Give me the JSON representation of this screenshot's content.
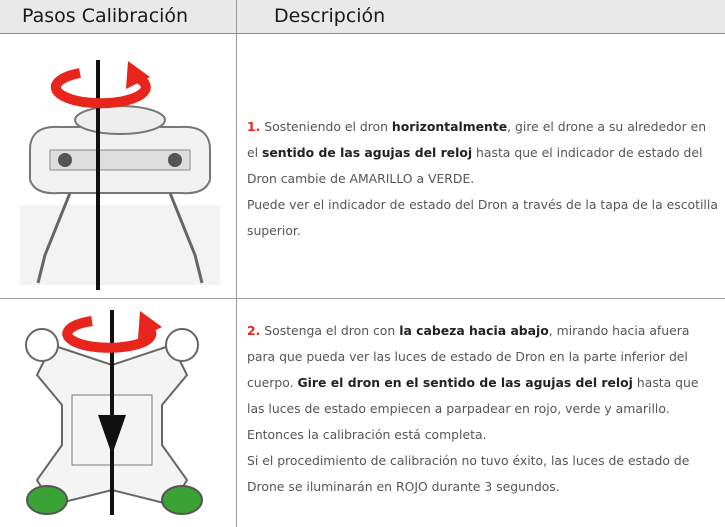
{
  "table": {
    "headers": [
      "Pasos Calibración",
      "Descripción"
    ],
    "rows": [
      {
        "paragraphs": [
          [
            "1.",
            "Sosteniendo el dron",
            "horizontalmente",
            ", gire el drone a su alrededor en el",
            "sentido de las agujas del reloj",
            "hasta que el indicador de estado del Dron cambie de AMARILLO a VERDE."
          ],
          [
            "Puede ver el indicador de estado del Dron a través de la tapa de la escotilla superior."
          ]
        ]
      },
      {
        "paragraphs": [
          [
            "2.",
            "Sostenga el dron con",
            "la cabeza hacia abajo",
            ", mirando hacia afuera para que pueda ver las luces de estado de Dron en la parte inferior del cuerpo.",
            "Gire el dron en el sentido de las agujas del reloj",
            "hasta que las luces de estado empiecen a parpadear en rojo, verde y amarillo."
          ],
          [
            "Entonces la calibración está completa."
          ],
          [
            "Si el procedimiento de calibración no tuvo éxito, las luces de estado de Drone se iluminarán en ROJO durante 3 segundos."
          ]
        ]
      }
    ]
  }
}
